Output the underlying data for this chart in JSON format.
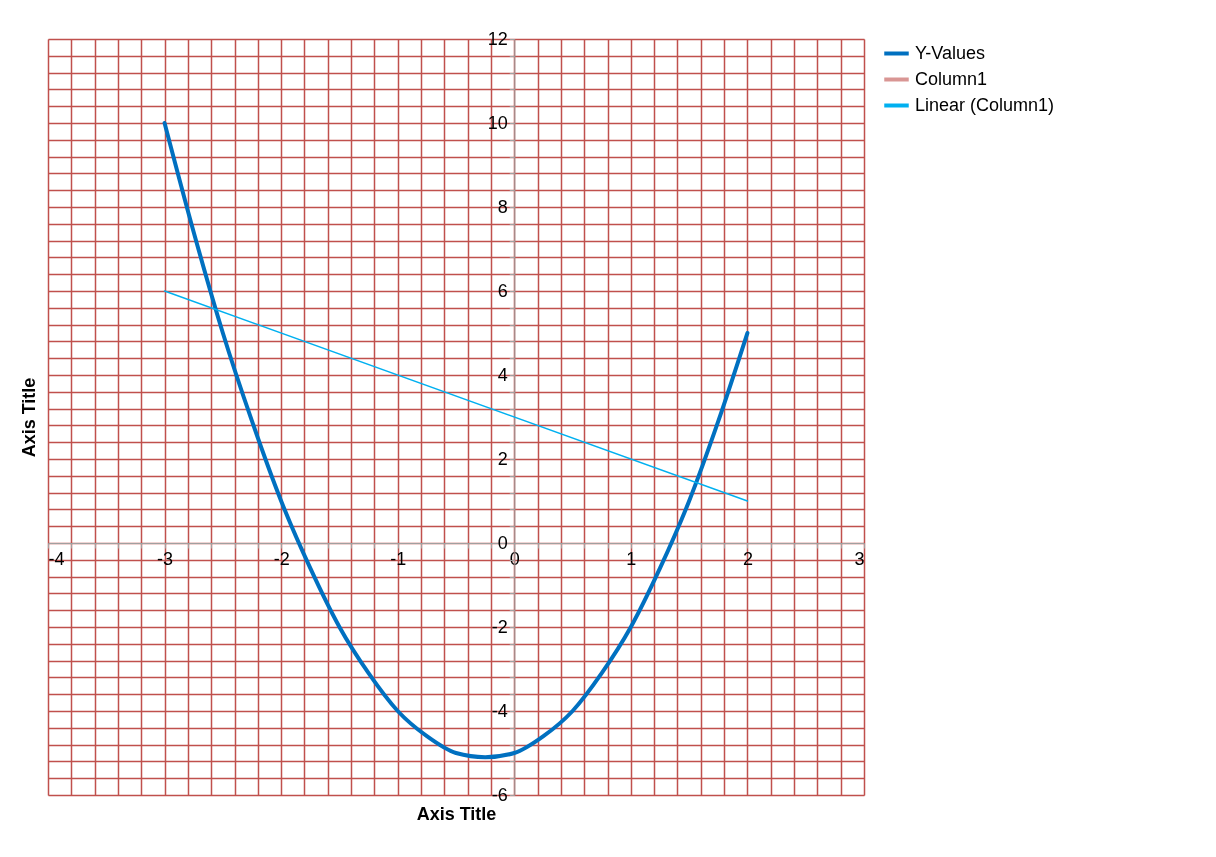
{
  "chart_data": {
    "type": "line",
    "xlabel": "Axis Title",
    "ylabel": "Axis Title",
    "xlim": [
      -4,
      3
    ],
    "ylim": [
      -6,
      12
    ],
    "xticks": [
      -4,
      {
        "value": -3.8,
        "label": null
      },
      {
        "value": -3.6,
        "label": null
      },
      {
        "value": -3.4,
        "label": null
      },
      {
        "value": -3.2,
        "label": null
      },
      -3,
      {
        "value": -2.8,
        "label": null
      },
      {
        "value": -2.6,
        "label": null
      },
      {
        "value": -2.4,
        "label": null
      },
      {
        "value": -2.2,
        "label": null
      },
      -2,
      {
        "value": -1.8,
        "label": null
      },
      {
        "value": -1.6,
        "label": null
      },
      {
        "value": -1.4,
        "label": null
      },
      {
        "value": -1.2,
        "label": null
      },
      -1,
      {
        "value": -0.8,
        "label": null
      },
      {
        "value": -0.6,
        "label": null
      },
      {
        "value": -0.4,
        "label": null
      },
      {
        "value": -0.2,
        "label": null
      },
      0,
      {
        "value": 0.2,
        "label": null
      },
      {
        "value": 0.4,
        "label": null
      },
      {
        "value": 0.6,
        "label": null
      },
      {
        "value": 0.8,
        "label": null
      },
      1,
      {
        "value": 1.2,
        "label": null
      },
      {
        "value": 1.4,
        "label": null
      },
      {
        "value": 1.6,
        "label": null
      },
      {
        "value": 1.8,
        "label": null
      },
      2,
      {
        "value": 2.2,
        "label": null
      },
      {
        "value": 2.4,
        "label": null
      },
      {
        "value": 2.6,
        "label": null
      },
      {
        "value": 2.8,
        "label": null
      },
      3
    ],
    "yticks": [
      -6,
      {
        "value": -5.6,
        "label": null
      },
      {
        "value": -5.2,
        "label": null
      },
      {
        "value": -4.8,
        "label": null
      },
      {
        "value": -4.4,
        "label": null
      },
      -4,
      {
        "value": -3.6,
        "label": null
      },
      {
        "value": -3.2,
        "label": null
      },
      {
        "value": -2.8,
        "label": null
      },
      {
        "value": -2.4,
        "label": null
      },
      -2,
      {
        "value": -1.6,
        "label": null
      },
      {
        "value": -1.2,
        "label": null
      },
      {
        "value": -0.8,
        "label": null
      },
      {
        "value": -0.4,
        "label": null
      },
      0,
      {
        "value": 0.4,
        "label": null
      },
      {
        "value": 0.8,
        "label": null
      },
      {
        "value": 1.2,
        "label": null
      },
      {
        "value": 1.6,
        "label": null
      },
      2,
      {
        "value": 2.4,
        "label": null
      },
      {
        "value": 2.8,
        "label": null
      },
      {
        "value": 3.2,
        "label": null
      },
      {
        "value": 3.6,
        "label": null
      },
      4,
      {
        "value": 4.4,
        "label": null
      },
      {
        "value": 4.8,
        "label": null
      },
      {
        "value": 5.2,
        "label": null
      },
      {
        "value": 5.6,
        "label": null
      },
      6,
      {
        "value": 6.4,
        "label": null
      },
      {
        "value": 6.8,
        "label": null
      },
      {
        "value": 7.2,
        "label": null
      },
      {
        "value": 7.6,
        "label": null
      },
      8,
      {
        "value": 8.4,
        "label": null
      },
      {
        "value": 8.8,
        "label": null
      },
      {
        "value": 9.2,
        "label": null
      },
      {
        "value": 9.6,
        "label": null
      },
      10,
      {
        "value": 10.4,
        "label": null
      },
      {
        "value": 10.8,
        "label": null
      },
      {
        "value": 11.2,
        "label": null
      },
      {
        "value": 11.6,
        "label": null
      },
      12
    ],
    "grid": true,
    "legend": "right",
    "marker": "none",
    "series": [
      {
        "name": "Y-Values",
        "color": "#0070c0",
        "x": [
          -3,
          -2.75,
          -2.5,
          -2.25,
          -2,
          -1.75,
          -1.5,
          -1.25,
          -1,
          -0.75,
          -0.5,
          -0.25,
          0,
          0.25,
          0.5,
          0.75,
          1,
          1.25,
          1.5,
          1.75,
          2
        ],
        "values": [
          10,
          7.4,
          5,
          2.9,
          1,
          -0.6,
          -2,
          -3.1,
          -4,
          -4.6,
          -5,
          -5.1,
          -5,
          -4.6,
          -4,
          -3.1,
          -2,
          -0.6,
          1,
          2.9,
          5
        ]
      },
      {
        "name": "Column1",
        "color": "#d99694"
      },
      {
        "name": "Linear (Column1)",
        "color": "#00b0f0",
        "x": [
          -3,
          2
        ],
        "values": [
          6,
          1
        ]
      }
    ]
  }
}
